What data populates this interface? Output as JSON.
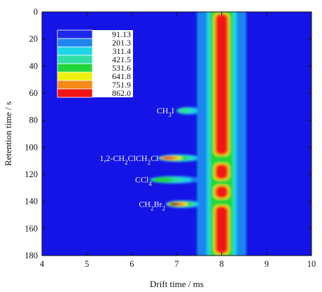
{
  "chart_data": {
    "type": "heatmap",
    "xlabel": "Drift time / ms",
    "ylabel": "Retention time / s",
    "xlim": [
      4,
      10
    ],
    "ylim": [
      0,
      180
    ],
    "y_inverted": true,
    "x_ticks": [
      "4",
      "5",
      "6",
      "7",
      "8",
      "9",
      "10"
    ],
    "y_ticks": [
      "0",
      "20",
      "40",
      "60",
      "80",
      "100",
      "120",
      "140",
      "160",
      "180"
    ],
    "background_color": "#1414e6",
    "legend": {
      "placement": "top-left",
      "levels": [
        {
          "value": "91.13",
          "color": "#1e28ec"
        },
        {
          "value": "201.3",
          "color": "#1f86f0"
        },
        {
          "value": "311.4",
          "color": "#1fd6e6"
        },
        {
          "value": "421.5",
          "color": "#2fe0a6"
        },
        {
          "value": "531.6",
          "color": "#22d63a"
        },
        {
          "value": "641.8",
          "color": "#eef00a"
        },
        {
          "value": "751.9",
          "color": "#f58a18"
        },
        {
          "value": "862.0",
          "color": "#f01414"
        }
      ]
    },
    "annotations": [
      {
        "label": "CH₃I",
        "sub": {
          "base": "CH",
          "sub": "3",
          "tail": "I"
        },
        "retention_time": 73,
        "drift_time": 7.1
      },
      {
        "label": "1,2-CH₂ClCH₂Cl",
        "retention_time": 108,
        "drift_time": 6.75
      },
      {
        "label": "CCl₄",
        "retention_time": 124,
        "drift_time": 6.6
      },
      {
        "label": "CH₂Br₂",
        "retention_time": 142,
        "drift_time": 6.9
      }
    ],
    "reactant_ion_peak": {
      "drift_time": 8.0,
      "segments": [
        {
          "from": 0,
          "to": 107,
          "level": 8
        },
        {
          "from": 111,
          "to": 125,
          "level": 8
        },
        {
          "from": 127,
          "to": 139,
          "level": 8
        },
        {
          "from": 142,
          "to": 180,
          "level": 8
        }
      ]
    },
    "analyte_peaks": [
      {
        "name": "CH3I",
        "drift_time": 7.1,
        "retention_time": 73,
        "level": 3
      },
      {
        "name": "1,2-CH2ClCH2Cl",
        "drift_time": 6.75,
        "retention_time": 108,
        "level": 7
      },
      {
        "name": "CCl4",
        "drift_time": 6.6,
        "retention_time": 124,
        "level": 4
      },
      {
        "name": "CH2Br2",
        "drift_time": 6.9,
        "retention_time": 142,
        "level": 8
      }
    ]
  }
}
